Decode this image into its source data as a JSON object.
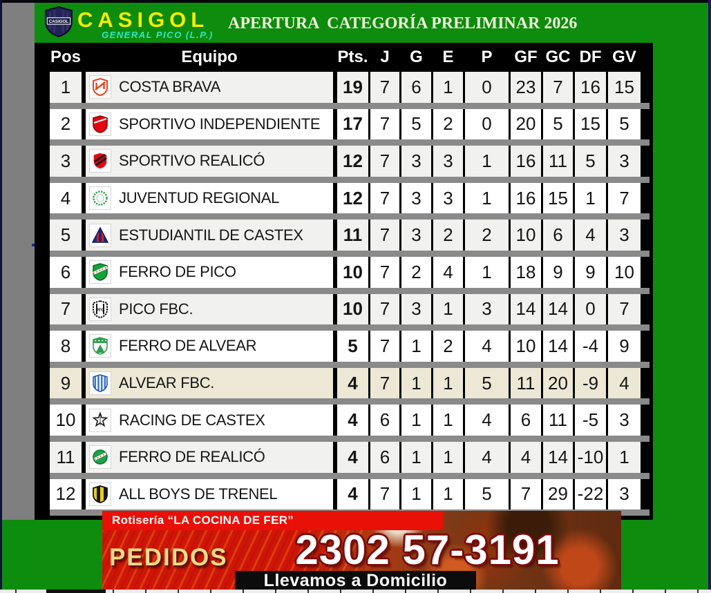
{
  "header": {
    "logo": {
      "shield_text": "CASIGOL",
      "brand": "CASIGOL",
      "subtitle": "GENERAL PICO (L.P.)"
    },
    "title": "APERTURA  CATEGORÍA PRELIMINAR 2026"
  },
  "standings": {
    "columns": [
      "Pos",
      "Equipo",
      "Pts.",
      "J",
      "G",
      "E",
      "P",
      "GF",
      "GC",
      "DF",
      "GV"
    ],
    "rows": [
      {
        "pos": "1",
        "team": "COSTA BRAVA",
        "badge": "costa-brava",
        "stats": [
          "19",
          "7",
          "6",
          "1",
          "0",
          "23",
          "7",
          "16",
          "15"
        ]
      },
      {
        "pos": "2",
        "team": "SPORTIVO INDEPENDIENTE",
        "badge": "sportivo-independiente",
        "stats": [
          "17",
          "7",
          "5",
          "2",
          "0",
          "20",
          "5",
          "15",
          "5"
        ]
      },
      {
        "pos": "3",
        "team": "SPORTIVO REALICÓ",
        "badge": "sportivo-realico",
        "stats": [
          "12",
          "7",
          "3",
          "3",
          "1",
          "16",
          "11",
          "5",
          "3"
        ]
      },
      {
        "pos": "4",
        "team": "JUVENTUD REGIONAL",
        "badge": "juventud-regional",
        "stats": [
          "12",
          "7",
          "3",
          "3",
          "1",
          "16",
          "15",
          "1",
          "7"
        ]
      },
      {
        "pos": "5",
        "team": "ESTUDIANTIL DE CASTEX",
        "badge": "estudiantil-de-castex",
        "stats": [
          "11",
          "7",
          "3",
          "2",
          "2",
          "10",
          "6",
          "4",
          "3"
        ]
      },
      {
        "pos": "6",
        "team": "FERRO DE PICO",
        "badge": "ferro-de-pico",
        "stats": [
          "10",
          "7",
          "2",
          "4",
          "1",
          "18",
          "9",
          "9",
          "10"
        ]
      },
      {
        "pos": "7",
        "team": "PICO FBC.",
        "badge": "pico-fbc",
        "stats": [
          "10",
          "7",
          "3",
          "1",
          "3",
          "14",
          "14",
          "0",
          "7"
        ]
      },
      {
        "pos": "8",
        "team": "FERRO DE ALVEAR",
        "badge": "ferro-de-alvear",
        "stats": [
          "5",
          "7",
          "1",
          "2",
          "4",
          "10",
          "14",
          "-4",
          "9"
        ]
      },
      {
        "pos": "9",
        "team": "ALVEAR FBC.",
        "badge": "alvear-fbc",
        "stats": [
          "4",
          "7",
          "1",
          "1",
          "5",
          "11",
          "20",
          "-9",
          "4"
        ],
        "highlight": "cream"
      },
      {
        "pos": "10",
        "team": "RACING DE CASTEX",
        "badge": "racing-de-castex",
        "stats": [
          "4",
          "6",
          "1",
          "1",
          "4",
          "6",
          "11",
          "-5",
          "3"
        ]
      },
      {
        "pos": "11",
        "team": "FERRO DE REALICÓ",
        "badge": "ferro-de-realico",
        "stats": [
          "4",
          "6",
          "1",
          "1",
          "4",
          "4",
          "14",
          "-10",
          "1"
        ]
      },
      {
        "pos": "12",
        "team": "ALL BOYS DE TRENEL",
        "badge": "all-boys-de-trenel",
        "stats": [
          "4",
          "7",
          "1",
          "1",
          "5",
          "7",
          "29",
          "-22",
          "3"
        ]
      }
    ]
  },
  "ad_banner": {
    "shop_label": "Rotisería “LA COCINA DE FER”",
    "orders_label": "PEDIDOS",
    "phone": "2302 57-3191",
    "delivery_label": "Llevamos a Domicilio"
  },
  "colors": {
    "background_green": "#0d8c0d",
    "brand_yellow": "#f4ee04",
    "subtitle_cyan": "#2be9c9",
    "table_background": "#000000",
    "row_light": "#f1f1ef",
    "row_white": "#ffffff",
    "row_cream": "#ece8d5",
    "separator_gray": "#8a8a8a",
    "ad_red": "#e81007"
  }
}
